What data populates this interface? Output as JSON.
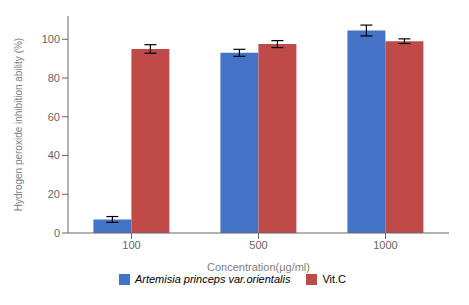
{
  "chart_data": {
    "type": "bar",
    "categories": [
      "100",
      "500",
      "1000"
    ],
    "series": [
      {
        "name": "Artemisia princeps var.orientalis",
        "color": "#4472C4",
        "values": [
          7.0,
          93.0,
          104.5
        ],
        "errors": [
          1.5,
          1.8,
          2.8
        ]
      },
      {
        "name": "Vit.C",
        "color": "#BE4B48",
        "values": [
          95.0,
          97.5,
          99.0
        ],
        "errors": [
          2.2,
          1.8,
          1.2
        ]
      }
    ],
    "xlabel": "Concentration(μg/ml)",
    "ylabel": "Hydrogen peroxide inhibition ability (%)",
    "ylim": [
      0,
      112
    ],
    "yticks": [
      0,
      20,
      40,
      60,
      80,
      100
    ],
    "grid": false,
    "legend": "bottom"
  }
}
